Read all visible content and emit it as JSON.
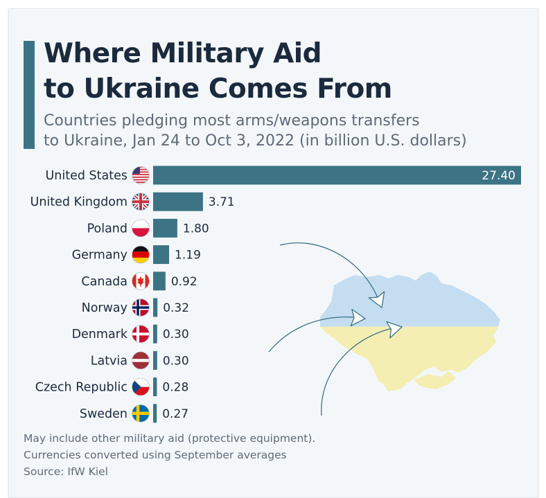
{
  "title": "Where Military Aid\nto Ukraine Comes From",
  "subtitle": "Countries pledging most arms/weapons transfers\nto Ukraine, Jan 24 to Oct 3, 2022 (in billion U.S. dollars)",
  "chart_data": {
    "type": "bar",
    "orientation": "horizontal",
    "title": "Where Military Aid to Ukraine Comes From",
    "xlabel": "",
    "ylabel": "",
    "unit": "billion U.S. dollars",
    "categories": [
      "United States",
      "United Kingdom",
      "Poland",
      "Germany",
      "Canada",
      "Norway",
      "Denmark",
      "Latvia",
      "Czech Republic",
      "Sweden"
    ],
    "values": [
      27.4,
      3.71,
      1.8,
      1.19,
      0.92,
      0.32,
      0.3,
      0.3,
      0.28,
      0.27
    ],
    "labels": [
      "27.40",
      "3.71",
      "1.80",
      "1.19",
      "0.92",
      "0.32",
      "0.30",
      "0.30",
      "0.28",
      "0.27"
    ],
    "flags": [
      "us-flag-icon",
      "uk-flag-icon",
      "poland-flag-icon",
      "germany-flag-icon",
      "canada-flag-icon",
      "norway-flag-icon",
      "denmark-flag-icon",
      "latvia-flag-icon",
      "czech-flag-icon",
      "sweden-flag-icon"
    ],
    "xlim": [
      0,
      27.4
    ],
    "grid": false
  },
  "footnotes": {
    "line1": "May include other military aid (protective equipment).",
    "line2": "Currencies converted using September averages",
    "source": "Source: IfW Kiel"
  },
  "colors": {
    "bar": "#3c7385",
    "title": "#1b2a3d",
    "text": "#5e6a78",
    "ukraine_blue": "#c4ddf1",
    "ukraine_yellow": "#f4eeb3"
  }
}
